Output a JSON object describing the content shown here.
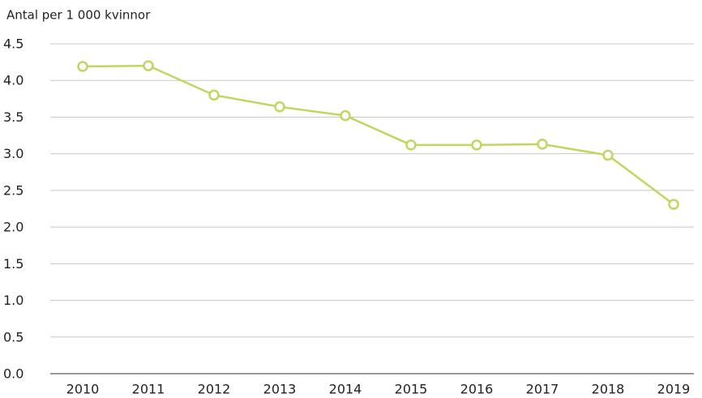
{
  "chart_data": {
    "type": "line",
    "y_axis_label": "Antal per 1 000 kvinnor",
    "categories": [
      "2010",
      "2011",
      "2012",
      "2013",
      "2014",
      "2015",
      "2016",
      "2017",
      "2018",
      "2019"
    ],
    "series": [
      {
        "color": "#bfd660",
        "values": [
          4.19,
          4.2,
          3.8,
          3.64,
          3.52,
          3.12,
          3.12,
          3.13,
          2.98,
          2.31
        ]
      }
    ],
    "ylim": [
      0,
      4.5
    ],
    "yticks": [
      {
        "value": 0,
        "label": "0.0"
      },
      0.5,
      {
        "value": 1,
        "label": "1.0"
      },
      1.5,
      {
        "value": 2,
        "label": "2.0"
      },
      2.5,
      {
        "value": 3,
        "label": "3.0"
      },
      3.5,
      {
        "value": 4,
        "label": "4.0"
      },
      4.5
    ],
    "grid": true
  }
}
